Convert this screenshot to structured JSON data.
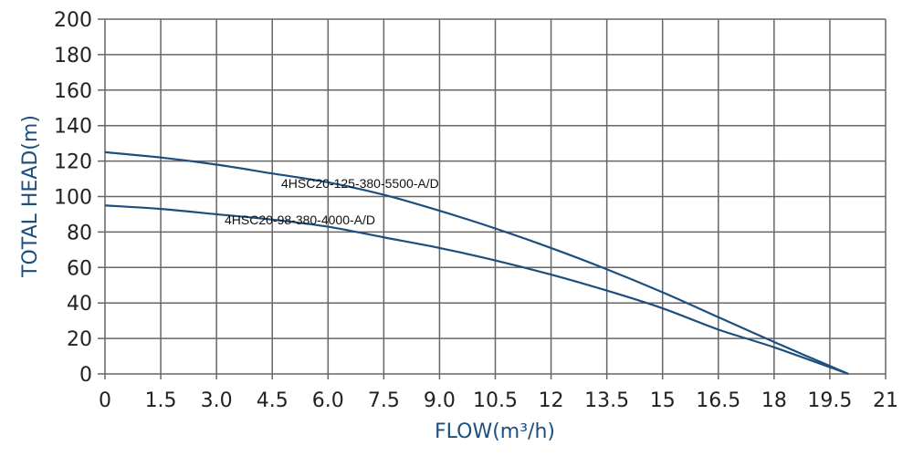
{
  "chart_data": {
    "type": "line",
    "title": "",
    "xlabel": "FLOW(m³/h)",
    "ylabel": "TOTAL HEAD(m)",
    "xlim": [
      0,
      21
    ],
    "ylim": [
      0,
      200
    ],
    "grid": true,
    "x_ticks": [
      "0",
      "1.5",
      "3.0",
      "4.5",
      "6.0",
      "7.5",
      "9.0",
      "10.5",
      "12",
      "13.5",
      "15",
      "16.5",
      "18",
      "19.5",
      "21"
    ],
    "y_ticks": [
      "0",
      "20",
      "40",
      "60",
      "80",
      "100",
      "120",
      "140",
      "160",
      "180",
      "200"
    ],
    "line_color": "#1d4f7e",
    "series": [
      {
        "name": "4HSC20-125-380-5500-A/D",
        "x": [
          0,
          1.5,
          3,
          4.5,
          6,
          7.5,
          9,
          10.5,
          12,
          13.5,
          15,
          16.5,
          18,
          20
        ],
        "y": [
          125,
          122,
          118,
          113,
          108,
          101,
          92,
          82,
          71,
          59,
          46,
          32,
          18,
          0
        ]
      },
      {
        "name": "4HSC20-98-380-4000-A/D",
        "x": [
          0,
          1.5,
          3,
          4.5,
          6,
          7.5,
          9,
          10.5,
          12,
          13.5,
          15,
          16.5,
          18,
          20
        ],
        "y": [
          95,
          93,
          90,
          87,
          83,
          77,
          71,
          64,
          56,
          47,
          37,
          25,
          15,
          0
        ]
      }
    ]
  }
}
